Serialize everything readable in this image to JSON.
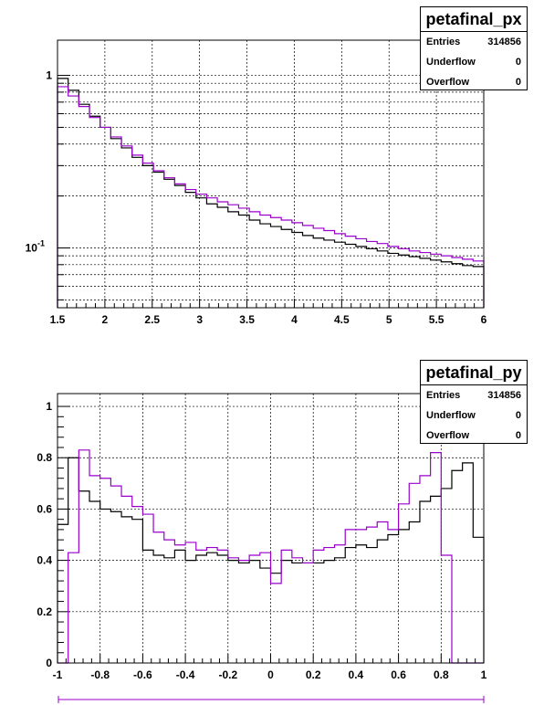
{
  "chart_data": [
    {
      "type": "histogram",
      "title": "petafinal_px",
      "stats": [
        {
          "label": "Entries",
          "value": "314856"
        },
        {
          "label": "Underflow",
          "value": "0"
        },
        {
          "label": "Overflow",
          "value": "0"
        }
      ],
      "xlim": [
        1.5,
        6.0
      ],
      "ylim": [
        0.045,
        1.6
      ],
      "log_y": true,
      "grid": true,
      "x_ticks": [
        "1.5",
        "2",
        "2.5",
        "3",
        "3.5",
        "4",
        "4.5",
        "5",
        "5.5",
        "6"
      ],
      "y_tick_labels": [
        {
          "value": 1,
          "text": "1"
        },
        {
          "value": 0.1,
          "text": "10^-1"
        }
      ],
      "bin_edges_start": 1.5,
      "bin_width": 0.1125,
      "series": [
        {
          "color": "#000000",
          "values": [
            0.96,
            0.82,
            0.68,
            0.58,
            0.5,
            0.43,
            0.38,
            0.335,
            0.3,
            0.275,
            0.25,
            0.23,
            0.21,
            0.195,
            0.18,
            0.172,
            0.162,
            0.155,
            0.145,
            0.138,
            0.133,
            0.128,
            0.123,
            0.118,
            0.114,
            0.111,
            0.108,
            0.105,
            0.102,
            0.099,
            0.096,
            0.093,
            0.091,
            0.089,
            0.087,
            0.085,
            0.083,
            0.081,
            0.079,
            0.078
          ]
        },
        {
          "color": "#9900cc",
          "values": [
            0.86,
            0.76,
            0.66,
            0.57,
            0.5,
            0.44,
            0.39,
            0.345,
            0.31,
            0.28,
            0.255,
            0.235,
            0.218,
            0.205,
            0.195,
            0.185,
            0.178,
            0.17,
            0.162,
            0.155,
            0.15,
            0.145,
            0.14,
            0.135,
            0.13,
            0.126,
            0.121,
            0.117,
            0.113,
            0.109,
            0.106,
            0.102,
            0.099,
            0.096,
            0.094,
            0.092,
            0.09,
            0.088,
            0.086,
            0.084
          ]
        }
      ]
    },
    {
      "type": "histogram",
      "title": "petafinal_py",
      "stats": [
        {
          "label": "Entries",
          "value": "314856"
        },
        {
          "label": "Underflow",
          "value": "0"
        },
        {
          "label": "Overflow",
          "value": "0"
        }
      ],
      "xlim": [
        -1.0,
        1.0
      ],
      "ylim": [
        0,
        1.05
      ],
      "log_y": false,
      "grid": true,
      "x_ticks": [
        "-1",
        "-0.8",
        "-0.6",
        "-0.4",
        "-0.2",
        "0",
        "0.2",
        "0.4",
        "0.6",
        "0.8",
        "1"
      ],
      "y_ticks": [
        "0",
        "0.2",
        "0.4",
        "0.6",
        "0.8",
        "1"
      ],
      "bin_edges_start": -1.0,
      "bin_width": 0.05,
      "series": [
        {
          "color": "#000000",
          "values": [
            0.54,
            0.8,
            0.67,
            0.63,
            0.6,
            0.59,
            0.57,
            0.56,
            0.44,
            0.42,
            0.41,
            0.44,
            0.4,
            0.42,
            0.43,
            0.42,
            0.4,
            0.39,
            0.4,
            0.37,
            0.35,
            0.4,
            0.39,
            0.39,
            0.39,
            0.4,
            0.41,
            0.45,
            0.46,
            0.45,
            0.48,
            0.5,
            0.52,
            0.55,
            0.63,
            0.65,
            0.68,
            0.75,
            0.78,
            0.49
          ]
        },
        {
          "color": "#9900cc",
          "values": [
            0.0,
            0.43,
            0.83,
            0.73,
            0.72,
            0.69,
            0.65,
            0.61,
            0.58,
            0.51,
            0.48,
            0.46,
            0.47,
            0.44,
            0.45,
            0.44,
            0.41,
            0.4,
            0.42,
            0.43,
            0.31,
            0.44,
            0.41,
            0.39,
            0.44,
            0.45,
            0.46,
            0.52,
            0.52,
            0.53,
            0.55,
            0.52,
            0.62,
            0.7,
            0.73,
            0.82,
            0.42,
            0.0,
            0.0,
            0.0
          ]
        }
      ]
    }
  ]
}
